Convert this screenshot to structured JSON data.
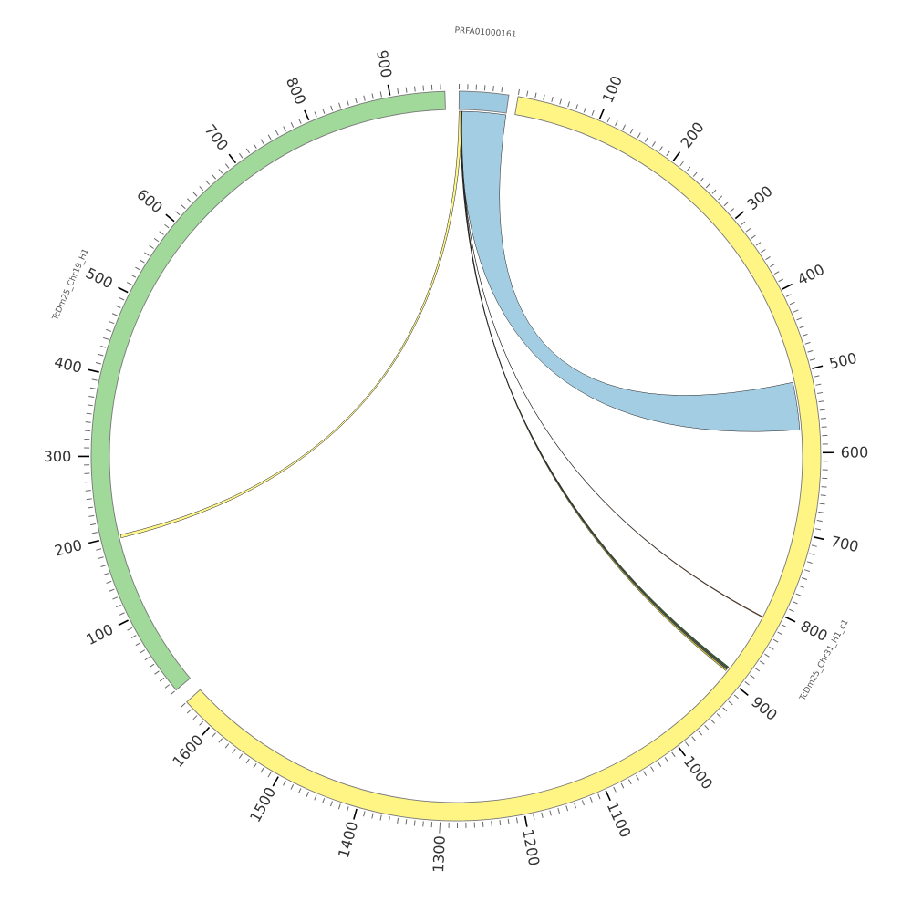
{
  "chart_data": {
    "type": "chord",
    "title": "",
    "tick_interval_minor": 10,
    "tick_interval_major": 100,
    "segments": [
      {
        "name": "PRFA01000161",
        "length": 59,
        "color": "#9ecae1"
      },
      {
        "name": "TcDm25_Chr31_H1_c1",
        "length": 1640,
        "color": "#fff585"
      },
      {
        "name": "TcDm25_Chr19_H1",
        "length": 965,
        "color": "#a1d99b"
      }
    ],
    "links": [
      {
        "source": "PRFA01000161",
        "source_start": 2,
        "source_end": 59,
        "target": "TcDm25_Chr31_H1_c1",
        "target_start": 511,
        "target_end": 571,
        "color": "#9ecae1"
      },
      {
        "source": "PRFA01000161",
        "source_start": 0,
        "source_end": 4,
        "target": "TcDm25_Chr19_H1",
        "target_start": 197,
        "target_end": 201,
        "color": "#fff585"
      },
      {
        "source": "PRFA01000161",
        "source_start": 3,
        "source_end": 3.3,
        "target": "TcDm25_Chr31_H1_c1",
        "target_start": 812,
        "target_end": 813,
        "color": "#8b4513"
      },
      {
        "source": "PRFA01000161",
        "source_start": 2,
        "source_end": 2.5,
        "target": "TcDm25_Chr31_H1_c1",
        "target_start": 888,
        "target_end": 890,
        "color": "#2e5e2e"
      },
      {
        "source": "PRFA01000161",
        "source_start": 2.5,
        "source_end": 3,
        "target": "TcDm25_Chr31_H1_c1",
        "target_start": 890,
        "target_end": 892,
        "color": "#555555"
      },
      {
        "source": "PRFA01000161",
        "source_start": 3.3,
        "source_end": 3.8,
        "target": "TcDm25_Chr31_H1_c1",
        "target_start": 892,
        "target_end": 894,
        "color": "#c8c040"
      }
    ]
  }
}
